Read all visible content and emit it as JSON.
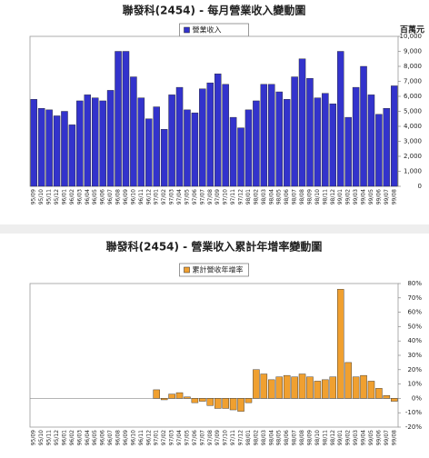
{
  "chart_data": [
    {
      "type": "bar",
      "title": "聯發科(2454) - 每月營業收入變動圖",
      "y_label": "百萬元",
      "categories": [
        "95/09",
        "95/10",
        "95/11",
        "95/12",
        "96/01",
        "96/02",
        "96/03",
        "96/04",
        "96/05",
        "96/06",
        "96/07",
        "96/08",
        "96/09",
        "96/10",
        "96/11",
        "96/12",
        "97/01",
        "97/02",
        "97/03",
        "97/04",
        "97/05",
        "97/06",
        "97/07",
        "97/08",
        "97/09",
        "97/10",
        "97/11",
        "97/12",
        "98/01",
        "98/02",
        "98/03",
        "98/04",
        "98/05",
        "98/06",
        "98/07",
        "98/08",
        "98/09",
        "98/10",
        "98/11",
        "98/12",
        "99/01",
        "99/02",
        "99/03",
        "99/04",
        "99/05",
        "99/06",
        "99/07",
        "99/08"
      ],
      "series": [
        {
          "name": "營業收入",
          "color": "#3333cc",
          "values": [
            5800,
            5200,
            5100,
            4700,
            5000,
            4100,
            5700,
            6100,
            5900,
            5700,
            6400,
            9000,
            9000,
            7300,
            5900,
            4500,
            5300,
            3800,
            6100,
            6600,
            5100,
            4900,
            6500,
            6900,
            7500,
            6800,
            4600,
            3900,
            5100,
            5700,
            6800,
            6800,
            6300,
            5800,
            7300,
            8500,
            7200,
            5900,
            6200,
            5500,
            9000,
            4600,
            6600,
            8000,
            6100,
            4800,
            5200,
            6700
          ]
        }
      ],
      "ylim": [
        0,
        10000
      ],
      "yticks": [
        0,
        {
          "value": 1000,
          "label": "1,000"
        },
        {
          "value": 2000,
          "label": "2,000"
        },
        {
          "value": 3000,
          "label": "3,000"
        },
        {
          "value": 4000,
          "label": "4,000"
        },
        {
          "value": 5000,
          "label": "5,000"
        },
        {
          "value": 6000,
          "label": "6,000"
        },
        {
          "value": 7000,
          "label": "7,000"
        },
        {
          "value": 8000,
          "label": "8,000"
        },
        {
          "value": 9000,
          "label": "9,000"
        },
        {
          "value": 10000,
          "label": "10,000"
        }
      ],
      "grid": false,
      "legend": "top"
    },
    {
      "type": "bar",
      "title": "聯發科(2454) -  營業收入累計年增率變動圖",
      "categories": [
        "95/09",
        "95/10",
        "95/11",
        "95/12",
        "96/01",
        "96/02",
        "96/03",
        "96/04",
        "96/05",
        "96/06",
        "96/07",
        "96/08",
        "96/09",
        "96/10",
        "96/11",
        "96/12",
        "97/01",
        "97/02",
        "97/03",
        "97/04",
        "97/05",
        "97/06",
        "97/07",
        "97/08",
        "97/09",
        "97/10",
        "97/11",
        "97/12",
        "98/01",
        "98/02",
        "98/03",
        "98/04",
        "98/05",
        "98/06",
        "98/07",
        "98/08",
        "98/09",
        "98/10",
        "98/11",
        "98/12",
        "99/01",
        "99/02",
        "99/03",
        "99/04",
        "99/05",
        "99/06",
        "99/07",
        "99/08"
      ],
      "series": [
        {
          "name": "累計營收年增率",
          "color": "#f0a030",
          "values": [
            0,
            0,
            0,
            0,
            0,
            0,
            0,
            0,
            0,
            0,
            0,
            0,
            0,
            0,
            0,
            0,
            6,
            -1,
            3,
            4,
            1,
            -3,
            -2,
            -5,
            -7,
            -7,
            -8,
            -9,
            -3,
            20,
            17,
            13,
            15,
            16,
            15,
            17,
            15,
            12,
            13,
            15,
            76,
            25,
            15,
            16,
            12,
            7,
            2,
            -2
          ]
        }
      ],
      "ylim": [
        -20,
        80
      ],
      "yticks": [
        {
          "value": -20,
          "label": "-20%"
        },
        {
          "value": -10,
          "label": "-10%"
        },
        {
          "value": 0,
          "label": "0%"
        },
        {
          "value": 10,
          "label": "10%"
        },
        {
          "value": 20,
          "label": "20%"
        },
        {
          "value": 30,
          "label": "30%"
        },
        {
          "value": 40,
          "label": "40%"
        },
        {
          "value": 50,
          "label": "50%"
        },
        {
          "value": 60,
          "label": "60%"
        },
        {
          "value": 70,
          "label": "70%"
        },
        {
          "value": 80,
          "label": "80%"
        }
      ],
      "grid": false,
      "legend": "top"
    }
  ]
}
